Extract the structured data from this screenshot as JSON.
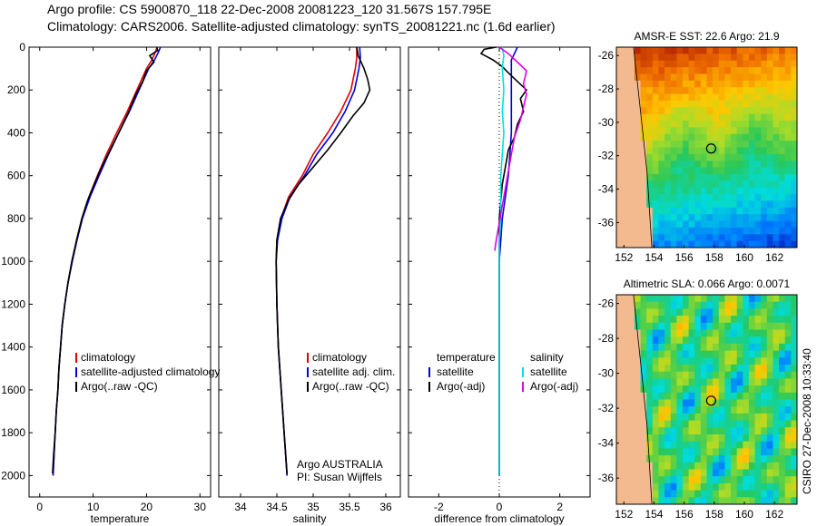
{
  "header": {
    "line1": "Argo profile: CS 5900870_118 22-Dec-2008 20081223_120 31.567S 157.795E",
    "line2": "Climatology: CARS2006. Satellite-adjusted climatology: synTS_20081221.nc (1.6d earlier)"
  },
  "colors": {
    "climatology": "#e00000",
    "satellite": "#0000e0",
    "argo": "#000000",
    "sal_satellite": "#00e0e0",
    "sal_argo": "#e000e0"
  },
  "chart_data": [
    {
      "type": "line",
      "panel": "temperature",
      "xlabel": "temperature",
      "xlim": [
        -2,
        32
      ],
      "ylim": [
        0,
        2100
      ],
      "xticks": [
        "0",
        "10",
        "20",
        "30"
      ],
      "yticks": [
        "0",
        "200",
        "400",
        "600",
        "800",
        "1000",
        "1200",
        "1400",
        "1600",
        "1800",
        "2000"
      ],
      "y_inverted": true,
      "legend": [
        "climatology",
        "satellite-adjusted climatology",
        "Argo(..raw -QC)"
      ],
      "series": [
        {
          "name": "climatology",
          "color": "red",
          "points": [
            [
              22.0,
              0
            ],
            [
              21.7,
              20
            ],
            [
              21.0,
              60
            ],
            [
              20.0,
              100
            ],
            [
              18.2,
              200
            ],
            [
              16.4,
              300
            ],
            [
              14.4,
              400
            ],
            [
              12.5,
              500
            ],
            [
              10.8,
              600
            ],
            [
              9.2,
              700
            ],
            [
              7.9,
              800
            ],
            [
              6.9,
              900
            ],
            [
              6.1,
              1000
            ],
            [
              5.3,
              1100
            ],
            [
              4.7,
              1200
            ],
            [
              4.2,
              1300
            ],
            [
              3.9,
              1400
            ],
            [
              3.6,
              1500
            ],
            [
              3.4,
              1600
            ],
            [
              3.1,
              1700
            ],
            [
              2.9,
              1800
            ],
            [
              2.7,
              1900
            ],
            [
              2.5,
              2000
            ]
          ]
        },
        {
          "name": "satellite-adjusted climatology",
          "color": "blue",
          "points": [
            [
              22.6,
              0
            ],
            [
              22.3,
              20
            ],
            [
              21.5,
              60
            ],
            [
              20.4,
              100
            ],
            [
              18.6,
              200
            ],
            [
              16.8,
              300
            ],
            [
              14.8,
              400
            ],
            [
              12.9,
              500
            ],
            [
              11.1,
              600
            ],
            [
              9.4,
              700
            ],
            [
              8.0,
              800
            ],
            [
              7.0,
              900
            ],
            [
              6.1,
              1000
            ],
            [
              5.3,
              1100
            ],
            [
              4.7,
              1200
            ],
            [
              4.2,
              1300
            ],
            [
              3.9,
              1400
            ],
            [
              3.6,
              1500
            ],
            [
              3.4,
              1600
            ],
            [
              3.1,
              1700
            ],
            [
              2.9,
              1800
            ],
            [
              2.7,
              1900
            ],
            [
              2.5,
              2000
            ]
          ]
        },
        {
          "name": "Argo(..raw -QC)",
          "color": "black",
          "points": [
            [
              21.9,
              0
            ],
            [
              22.1,
              15
            ],
            [
              20.6,
              40
            ],
            [
              21.4,
              70
            ],
            [
              20.0,
              110
            ],
            [
              19.3,
              160
            ],
            [
              18.0,
              220
            ],
            [
              16.7,
              300
            ],
            [
              15.0,
              390
            ],
            [
              13.4,
              470
            ],
            [
              11.6,
              560
            ],
            [
              10.2,
              640
            ],
            [
              8.9,
              720
            ],
            [
              7.9,
              800
            ],
            [
              6.9,
              900
            ],
            [
              6.0,
              1000
            ],
            [
              5.3,
              1100
            ],
            [
              4.7,
              1200
            ],
            [
              4.2,
              1300
            ],
            [
              3.9,
              1400
            ],
            [
              3.6,
              1500
            ],
            [
              3.4,
              1600
            ],
            [
              3.1,
              1700
            ],
            [
              2.9,
              1800
            ],
            [
              2.6,
              1900
            ],
            [
              2.4,
              1990
            ]
          ]
        }
      ]
    },
    {
      "type": "line",
      "panel": "salinity",
      "xlabel": "salinity",
      "xlim": [
        33.7,
        36.2
      ],
      "ylim": [
        0,
        2100
      ],
      "xticks": [
        "34",
        "34.5",
        "35",
        "35.5",
        "36"
      ],
      "y_inverted": true,
      "legend": [
        "climatology",
        "satellite adj. clim.",
        "Argo(..raw -QC)"
      ],
      "annotation": [
        "Argo AUSTRALIA",
        "PI: Susan Wijffels"
      ],
      "series": [
        {
          "name": "climatology",
          "color": "red",
          "points": [
            [
              35.6,
              0
            ],
            [
              35.6,
              50
            ],
            [
              35.58,
              100
            ],
            [
              35.52,
              200
            ],
            [
              35.38,
              300
            ],
            [
              35.2,
              400
            ],
            [
              35.0,
              500
            ],
            [
              34.85,
              600
            ],
            [
              34.66,
              700
            ],
            [
              34.56,
              800
            ],
            [
              34.5,
              900
            ],
            [
              34.49,
              1000
            ],
            [
              34.5,
              1200
            ],
            [
              34.52,
              1400
            ],
            [
              34.56,
              1600
            ],
            [
              34.6,
              1800
            ],
            [
              34.64,
              2000
            ]
          ]
        },
        {
          "name": "satellite adj. clim.",
          "color": "blue",
          "points": [
            [
              35.64,
              0
            ],
            [
              35.65,
              50
            ],
            [
              35.63,
              100
            ],
            [
              35.57,
              200
            ],
            [
              35.44,
              300
            ],
            [
              35.27,
              400
            ],
            [
              35.05,
              500
            ],
            [
              34.88,
              600
            ],
            [
              34.68,
              700
            ],
            [
              34.57,
              800
            ],
            [
              34.51,
              900
            ],
            [
              34.49,
              1000
            ],
            [
              34.5,
              1200
            ],
            [
              34.52,
              1400
            ],
            [
              34.56,
              1600
            ],
            [
              34.6,
              1800
            ],
            [
              34.64,
              2000
            ]
          ]
        },
        {
          "name": "Argo(..raw -QC)",
          "color": "black",
          "points": [
            [
              35.6,
              0
            ],
            [
              35.62,
              40
            ],
            [
              35.7,
              100
            ],
            [
              35.75,
              150
            ],
            [
              35.78,
              200
            ],
            [
              35.7,
              260
            ],
            [
              35.55,
              320
            ],
            [
              35.38,
              400
            ],
            [
              35.2,
              480
            ],
            [
              35.0,
              560
            ],
            [
              34.8,
              640
            ],
            [
              34.65,
              720
            ],
            [
              34.55,
              800
            ],
            [
              34.5,
              900
            ],
            [
              34.49,
              1000
            ],
            [
              34.5,
              1200
            ],
            [
              34.52,
              1400
            ],
            [
              34.56,
              1600
            ],
            [
              34.6,
              1800
            ],
            [
              34.64,
              1990
            ]
          ]
        }
      ]
    },
    {
      "type": "line",
      "panel": "difference",
      "xlabel": "difference from climatology",
      "xlim": [
        -3,
        3
      ],
      "ylim": [
        0,
        2100
      ],
      "xticks": [
        "-2",
        "0",
        "2"
      ],
      "y_inverted": true,
      "legend_titles": [
        "temperature",
        "salinity"
      ],
      "legend": [
        "satellite",
        "Argo(-adj)",
        "satellite",
        "Argo(-adj)"
      ],
      "series": [
        {
          "name": "temperature satellite",
          "color": "blue",
          "points": [
            [
              0.6,
              0
            ],
            [
              0.5,
              30
            ],
            [
              0.4,
              60
            ],
            [
              0.4,
              100
            ],
            [
              0.4,
              200
            ],
            [
              0.4,
              300
            ],
            [
              0.4,
              400
            ],
            [
              0.35,
              500
            ],
            [
              0.3,
              600
            ],
            [
              0.2,
              700
            ],
            [
              0.1,
              800
            ],
            [
              0.05,
              900
            ],
            [
              0.0,
              1000
            ],
            [
              0.0,
              1200
            ],
            [
              0.0,
              1600
            ],
            [
              0.0,
              2000
            ]
          ]
        },
        {
          "name": "temperature Argo(-adj)",
          "color": "black",
          "points": [
            [
              -0.1,
              0
            ],
            [
              -0.5,
              10
            ],
            [
              -0.6,
              30
            ],
            [
              -0.2,
              60
            ],
            [
              0.1,
              90
            ],
            [
              0.3,
              120
            ],
            [
              0.6,
              160
            ],
            [
              0.9,
              200
            ],
            [
              0.7,
              240
            ],
            [
              0.8,
              300
            ],
            [
              0.6,
              360
            ],
            [
              0.5,
              420
            ],
            [
              0.3,
              480
            ],
            [
              0.2,
              560
            ],
            [
              0.1,
              640
            ],
            [
              0.05,
              720
            ],
            [
              0.0,
              800
            ],
            [
              0.0,
              1000
            ],
            [
              0.0,
              1200
            ],
            [
              0.0,
              1600
            ],
            [
              0.0,
              2000
            ]
          ]
        },
        {
          "name": "salinity satellite",
          "color": "cyan",
          "points": [
            [
              0.1,
              0
            ],
            [
              0.15,
              40
            ],
            [
              0.1,
              100
            ],
            [
              0.15,
              200
            ],
            [
              0.1,
              300
            ],
            [
              0.15,
              400
            ],
            [
              0.1,
              500
            ],
            [
              0.05,
              600
            ],
            [
              0.05,
              700
            ],
            [
              0.05,
              800
            ],
            [
              0.0,
              900
            ],
            [
              0.0,
              1000
            ],
            [
              0.0,
              1200
            ],
            [
              0.0,
              1600
            ],
            [
              0.0,
              2000
            ]
          ]
        },
        {
          "name": "salinity Argo(-adj)",
          "color": "magenta",
          "points": [
            [
              0.0,
              0
            ],
            [
              0.3,
              30
            ],
            [
              0.6,
              70
            ],
            [
              0.9,
              110
            ],
            [
              0.8,
              170
            ],
            [
              0.9,
              220
            ],
            [
              0.8,
              280
            ],
            [
              0.7,
              340
            ],
            [
              0.5,
              420
            ],
            [
              0.4,
              500
            ],
            [
              0.3,
              580
            ],
            [
              0.2,
              660
            ],
            [
              0.1,
              740
            ],
            [
              0.0,
              820
            ],
            [
              -0.1,
              900
            ],
            [
              -0.15,
              950
            ]
          ]
        }
      ]
    },
    {
      "type": "heatmap",
      "panel": "sst_map",
      "title": "AMSR-E SST: 22.6 Argo: 21.9",
      "xlim": [
        151.5,
        163.5
      ],
      "ylim": [
        -37.5,
        -25.5
      ],
      "xticks": [
        "152",
        "154",
        "156",
        "158",
        "160",
        "162"
      ],
      "yticks": [
        "-26",
        "-28",
        "-30",
        "-32",
        "-34",
        "-36"
      ],
      "float_position": [
        157.795,
        -31.567
      ]
    },
    {
      "type": "heatmap",
      "panel": "sla_map",
      "title": "Altimetric SLA: 0.066 Argo: 0.0071",
      "xlim": [
        151.5,
        163.5
      ],
      "ylim": [
        -37.5,
        -25.5
      ],
      "xticks": [
        "152",
        "154",
        "156",
        "158",
        "160",
        "162"
      ],
      "yticks": [
        "-26",
        "-28",
        "-30",
        "-32",
        "-34",
        "-36"
      ],
      "float_position": [
        157.795,
        -31.567
      ]
    }
  ],
  "footer": {
    "credit": "CSIRO 27-Dec-2008 10:33:40"
  }
}
